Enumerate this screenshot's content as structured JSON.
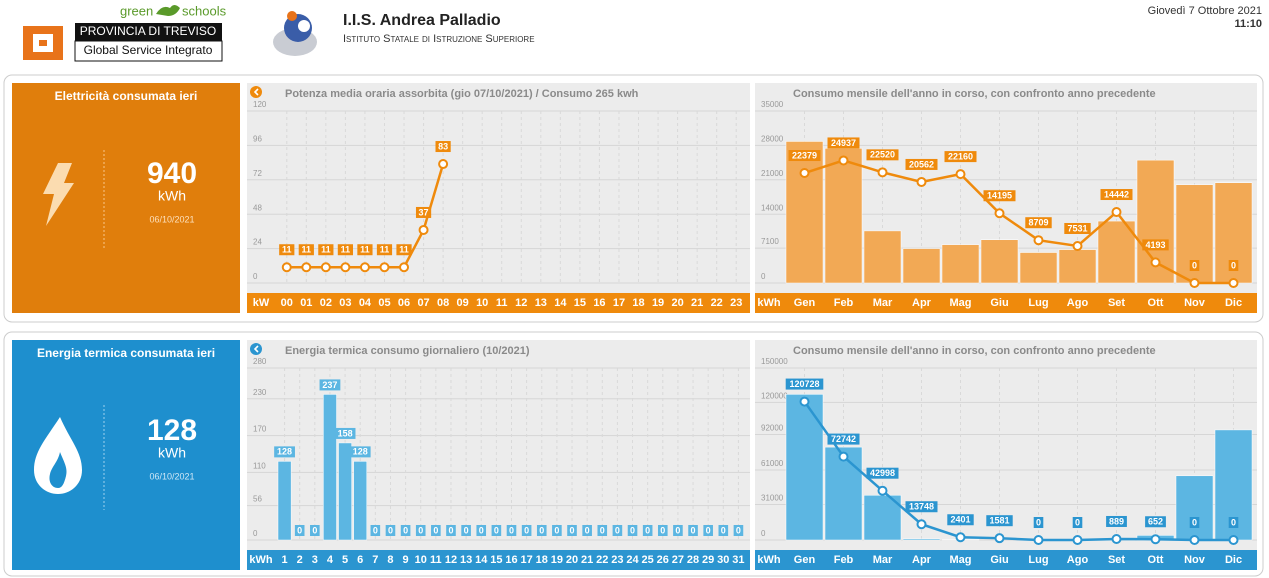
{
  "header": {
    "logo_green": "green",
    "logo_schools": "schools",
    "province": "PROVINCIA DI TREVISO",
    "service": "Global Service Integrato",
    "school_name": "I.I.S. Andrea Palladio",
    "school_subtitle": "Istituto Statale di Istruzione Superiore",
    "date": "Giovedì 7 Ottobre 2021",
    "time": "11:10"
  },
  "panels": [
    {
      "title": "Elettricità consumata ieri",
      "value": "940",
      "unit": "kWh",
      "date": "06/10/2021"
    },
    {
      "title": "Energia termica consumata ieri",
      "value": "128",
      "unit": "kWh",
      "date": "06/10/2021"
    }
  ],
  "chart_data": [
    {
      "type": "line",
      "title": "Potenza media oraria assorbita (gio 07/10/2021) / Consumo 265 kwh",
      "unit_label": "kW",
      "band_color": "#ef8a0c",
      "categories": [
        "00",
        "01",
        "02",
        "03",
        "04",
        "05",
        "06",
        "07",
        "08",
        "09",
        "10",
        "11",
        "12",
        "13",
        "14",
        "15",
        "16",
        "17",
        "18",
        "19",
        "20",
        "21",
        "22",
        "23"
      ],
      "series": [
        {
          "color": "#ef8a0c",
          "data_labels": true,
          "values": [
            11,
            11,
            11,
            11,
            11,
            11,
            11,
            37,
            83,
            null,
            null,
            null,
            null,
            null,
            null,
            null,
            null,
            null,
            null,
            null,
            null,
            null,
            null,
            null
          ]
        }
      ],
      "ylim": [
        0,
        120
      ],
      "yticks": [
        0,
        24,
        48,
        72,
        96,
        120
      ],
      "grid": true
    },
    {
      "type": "combo",
      "title": "Consumo mensile dell'anno in corso, con confronto anno precedente",
      "unit_label": "kWh",
      "band_color": "#ef8a0c",
      "categories": [
        "Gen",
        "Feb",
        "Mar",
        "Apr",
        "Mag",
        "Giu",
        "Lug",
        "Ago",
        "Set",
        "Ott",
        "Nov",
        "Dic"
      ],
      "series": [
        {
          "type": "bar",
          "color": "#f2a955",
          "data_labels": false,
          "values": [
            28800,
            27400,
            10600,
            7000,
            7800,
            8800,
            6200,
            6800,
            12600,
            25000,
            20000,
            20400
          ]
        },
        {
          "type": "line",
          "color": "#ef8a0c",
          "data_labels": true,
          "values": [
            22379,
            24937,
            22520,
            20562,
            22160,
            14195,
            8709,
            7531,
            14442,
            4193,
            0,
            0
          ]
        }
      ],
      "ylim": [
        0,
        35000
      ],
      "yticks": [
        0,
        7100,
        14000,
        21000,
        28000,
        35000
      ],
      "grid": true
    },
    {
      "type": "bar",
      "title": "Energia termica consumo giornaliero (10/2021)",
      "unit_label": "kWh",
      "band_color": "#2b95d0",
      "categories": [
        "1",
        "2",
        "3",
        "4",
        "5",
        "6",
        "7",
        "8",
        "9",
        "10",
        "11",
        "12",
        "13",
        "14",
        "15",
        "16",
        "17",
        "18",
        "19",
        "20",
        "21",
        "22",
        "23",
        "24",
        "25",
        "26",
        "27",
        "28",
        "29",
        "30",
        "31"
      ],
      "series": [
        {
          "color": "#5cb6e2",
          "data_labels": true,
          "values": [
            128,
            0,
            0,
            237,
            158,
            128,
            0,
            0,
            0,
            0,
            0,
            0,
            0,
            0,
            0,
            0,
            0,
            0,
            0,
            0,
            0,
            0,
            0,
            0,
            0,
            0,
            0,
            0,
            0,
            0,
            0
          ]
        }
      ],
      "ylim": [
        0,
        280
      ],
      "yticks": [
        0,
        56,
        110,
        170,
        230,
        280
      ],
      "grid": true
    },
    {
      "type": "combo",
      "title": "Consumo mensile dell'anno in corso, con confronto anno precedente",
      "unit_label": "kWh",
      "band_color": "#2b95d0",
      "categories": [
        "Gen",
        "Feb",
        "Mar",
        "Apr",
        "Mag",
        "Giu",
        "Lug",
        "Ago",
        "Set",
        "Ott",
        "Nov",
        "Dic"
      ],
      "series": [
        {
          "type": "bar",
          "color": "#5cb6e2",
          "data_labels": false,
          "values": [
            127000,
            81000,
            39000,
            1000,
            300,
            0,
            0,
            0,
            1000,
            4000,
            56000,
            96000
          ]
        },
        {
          "type": "line",
          "color": "#2b95d0",
          "data_labels": true,
          "values": [
            120728,
            72742,
            42998,
            13748,
            2401,
            1581,
            0,
            0,
            889,
            652,
            0,
            0
          ]
        }
      ],
      "ylim": [
        0,
        150000
      ],
      "yticks": [
        0,
        31000,
        61000,
        92000,
        120000,
        150000
      ],
      "grid": true
    }
  ]
}
